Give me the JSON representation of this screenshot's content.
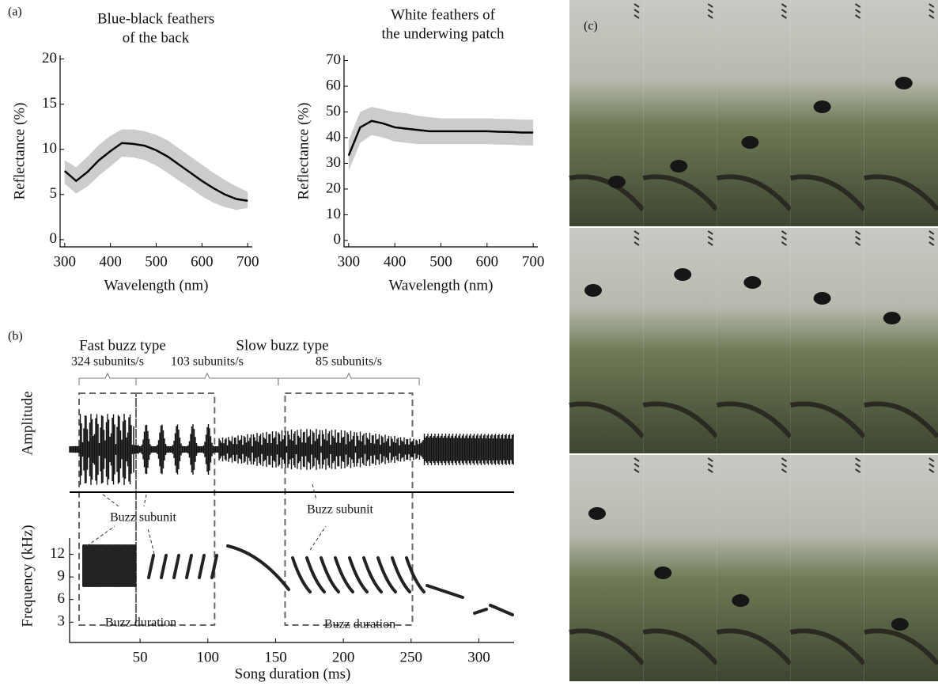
{
  "chart_data": [
    {
      "type": "band-line",
      "panel_label": "(a)",
      "title": [
        "Blue-black feathers",
        "of the back"
      ],
      "x_label": "Wavelength (nm)",
      "y_label": "Reflectance (%)",
      "x": [
        300,
        325,
        350,
        375,
        400,
        425,
        450,
        475,
        500,
        525,
        550,
        575,
        600,
        625,
        650,
        675,
        700
      ],
      "values": [
        7.6,
        6.5,
        7.5,
        8.8,
        9.8,
        10.7,
        10.6,
        10.4,
        9.9,
        9.2,
        8.3,
        7.4,
        6.5,
        5.7,
        5.0,
        4.5,
        4.3
      ],
      "band_high": [
        8.8,
        8.0,
        9.2,
        10.5,
        11.5,
        12.2,
        12.2,
        12.0,
        11.6,
        11.0,
        10.1,
        9.2,
        8.3,
        7.4,
        6.6,
        5.9,
        5.3
      ],
      "band_low": [
        6.2,
        5.1,
        5.9,
        7.1,
        8.1,
        9.2,
        9.1,
        8.8,
        8.2,
        7.4,
        6.5,
        5.7,
        4.8,
        4.1,
        3.6,
        3.3,
        3.5
      ],
      "color": "#000000",
      "band_color": "#cccccc",
      "xlim": [
        290,
        710
      ],
      "xticks": [
        300,
        400,
        500,
        600,
        700
      ],
      "ylim": [
        -0.8,
        20.4
      ],
      "yticks": [
        0,
        5,
        10,
        15,
        20
      ]
    },
    {
      "type": "band-line",
      "title": [
        "White feathers of",
        "the underwing patch"
      ],
      "x_label": "Wavelength (nm)",
      "y_label": "Reflectance (%)",
      "x": [
        300,
        325,
        350,
        375,
        400,
        425,
        450,
        475,
        500,
        525,
        550,
        575,
        600,
        625,
        650,
        675,
        700
      ],
      "values": [
        33,
        44,
        46.5,
        45.5,
        44,
        43.5,
        43,
        42.5,
        42.5,
        42.5,
        42.5,
        42.5,
        42.5,
        42.3,
        42.2,
        42,
        42
      ],
      "band_high": [
        39,
        50,
        52,
        51,
        50,
        49.5,
        48.5,
        48,
        47.5,
        47.5,
        47.5,
        47.5,
        47.5,
        47.3,
        47.2,
        47,
        47
      ],
      "band_low": [
        27,
        38,
        41,
        40,
        38.5,
        38,
        37.5,
        37.5,
        37.5,
        37.5,
        37.5,
        37.5,
        37.5,
        37.3,
        37.2,
        37,
        37
      ],
      "color": "#000000",
      "band_color": "#cccccc",
      "xlim": [
        290,
        710
      ],
      "xticks": [
        300,
        400,
        500,
        600,
        700
      ],
      "ylim": [
        -2.5,
        72
      ],
      "yticks": [
        0,
        10,
        20,
        30,
        40,
        50,
        60,
        70
      ]
    },
    {
      "type": "waveform-spectrogram",
      "panel_label": "(b)",
      "buzz_types": [
        "Fast buzz type",
        "Slow buzz type"
      ],
      "segments": [
        {
          "label": "324 subunits/s",
          "start": 5,
          "end": 47
        },
        {
          "label": "103 subunits/s",
          "start": 47,
          "end": 152
        },
        {
          "label": "85 subunits/s",
          "start": 152,
          "end": 256
        }
      ],
      "buzz_boxes": [
        [
          5,
          47
        ],
        [
          47,
          105
        ],
        [
          157,
          251
        ]
      ],
      "annotations": [
        "Buzz subunit",
        "Buzz subunit",
        "Buzz duration",
        "Buzz duration"
      ],
      "amplitude_label": "Amplitude",
      "y_label": "Frequency (kHz)",
      "x_label": "Song duration (ms)",
      "xlim": [
        -2,
        326
      ],
      "xticks": [
        50,
        100,
        150,
        200,
        250,
        300
      ],
      "ylim": [
        0.3,
        15
      ],
      "yticks": [
        3,
        6,
        9,
        12
      ]
    }
  ],
  "photo_panel": {
    "label": "(c)"
  }
}
